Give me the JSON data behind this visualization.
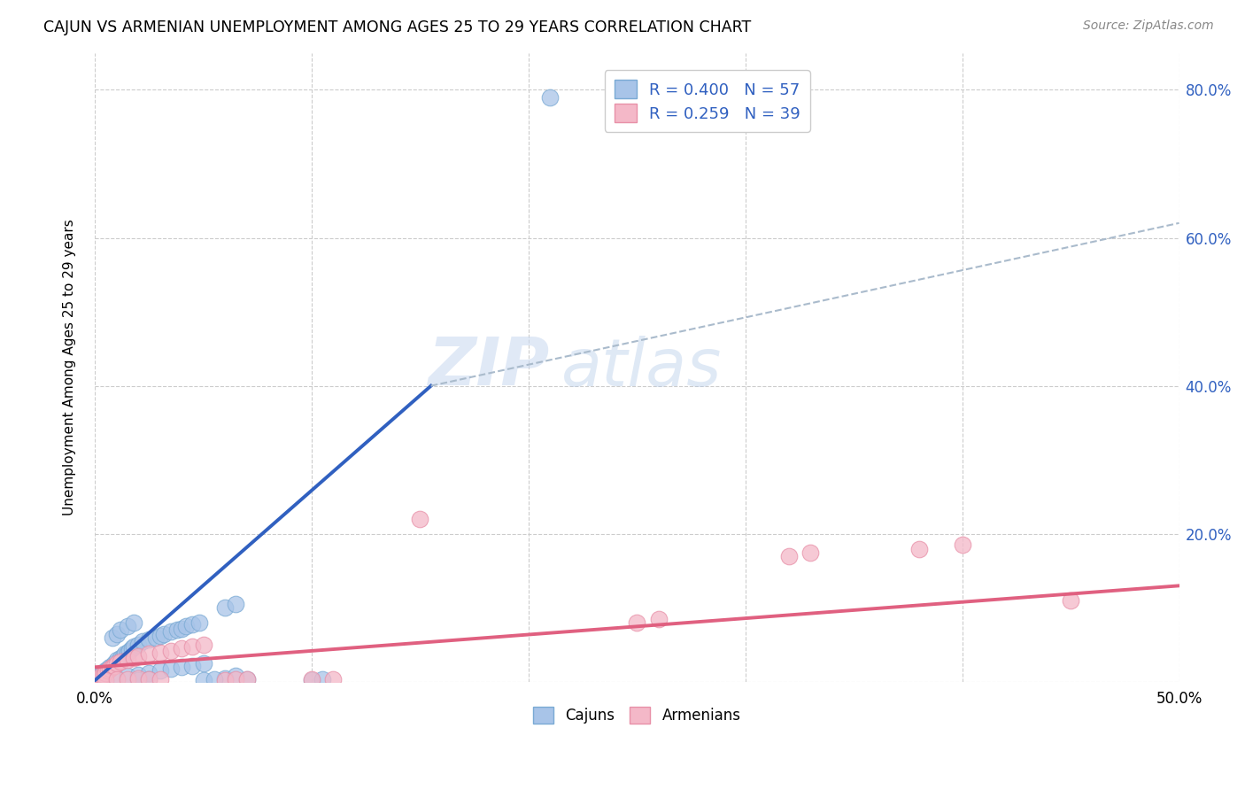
{
  "title": "CAJUN VS ARMENIAN UNEMPLOYMENT AMONG AGES 25 TO 29 YEARS CORRELATION CHART",
  "source": "Source: ZipAtlas.com",
  "ylabel": "Unemployment Among Ages 25 to 29 years",
  "xlim": [
    0.0,
    0.5
  ],
  "ylim": [
    0.0,
    0.85
  ],
  "x_ticks": [
    0.0,
    0.1,
    0.2,
    0.3,
    0.4,
    0.5
  ],
  "x_tick_labels_show": [
    "0.0%",
    "",
    "",
    "",
    "",
    "50.0%"
  ],
  "y_ticks": [
    0.0,
    0.2,
    0.4,
    0.6,
    0.8
  ],
  "y_tick_labels_right": [
    "",
    "20.0%",
    "40.0%",
    "60.0%",
    "80.0%"
  ],
  "cajun_color": "#a8c4e8",
  "cajun_edge_color": "#7aaad4",
  "armenian_color": "#f4b8c8",
  "armenian_edge_color": "#e890a8",
  "cajun_line_color": "#3060c0",
  "armenian_line_color": "#e06080",
  "dashed_line_color": "#aabbcc",
  "watermark": "ZIPatlas",
  "legend_entry_cajun": "R = 0.400   N = 57",
  "legend_entry_armenian": "R = 0.259   N = 39",
  "legend_text_color": "#3060c0",
  "cajun_scatter": [
    [
      0.001,
      0.005
    ],
    [
      0.002,
      0.008
    ],
    [
      0.003,
      0.01
    ],
    [
      0.004,
      0.012
    ],
    [
      0.005,
      0.015
    ],
    [
      0.006,
      0.018
    ],
    [
      0.007,
      0.02
    ],
    [
      0.008,
      0.022
    ],
    [
      0.009,
      0.025
    ],
    [
      0.01,
      0.03
    ],
    [
      0.011,
      0.028
    ],
    [
      0.012,
      0.032
    ],
    [
      0.013,
      0.035
    ],
    [
      0.014,
      0.038
    ],
    [
      0.015,
      0.04
    ],
    [
      0.016,
      0.042
    ],
    [
      0.017,
      0.045
    ],
    [
      0.018,
      0.048
    ],
    [
      0.02,
      0.05
    ],
    [
      0.022,
      0.055
    ],
    [
      0.025,
      0.058
    ],
    [
      0.028,
      0.06
    ],
    [
      0.03,
      0.062
    ],
    [
      0.032,
      0.065
    ],
    [
      0.035,
      0.068
    ],
    [
      0.038,
      0.07
    ],
    [
      0.04,
      0.072
    ],
    [
      0.042,
      0.075
    ],
    [
      0.045,
      0.078
    ],
    [
      0.048,
      0.08
    ],
    [
      0.005,
      0.002
    ],
    [
      0.01,
      0.005
    ],
    [
      0.015,
      0.008
    ],
    [
      0.02,
      0.01
    ],
    [
      0.025,
      0.012
    ],
    [
      0.03,
      0.015
    ],
    [
      0.035,
      0.018
    ],
    [
      0.04,
      0.02
    ],
    [
      0.045,
      0.022
    ],
    [
      0.05,
      0.025
    ],
    [
      0.008,
      0.06
    ],
    [
      0.01,
      0.065
    ],
    [
      0.012,
      0.07
    ],
    [
      0.015,
      0.075
    ],
    [
      0.018,
      0.08
    ],
    [
      0.06,
      0.1
    ],
    [
      0.065,
      0.105
    ],
    [
      0.02,
      0.002
    ],
    [
      0.025,
      0.003
    ],
    [
      0.06,
      0.005
    ],
    [
      0.065,
      0.008
    ],
    [
      0.07,
      0.003
    ],
    [
      0.05,
      0.002
    ],
    [
      0.055,
      0.003
    ],
    [
      0.1,
      0.002
    ],
    [
      0.105,
      0.003
    ],
    [
      0.21,
      0.79
    ]
  ],
  "armenian_scatter": [
    [
      0.001,
      0.002
    ],
    [
      0.002,
      0.005
    ],
    [
      0.003,
      0.008
    ],
    [
      0.004,
      0.01
    ],
    [
      0.005,
      0.012
    ],
    [
      0.006,
      0.015
    ],
    [
      0.007,
      0.018
    ],
    [
      0.008,
      0.02
    ],
    [
      0.009,
      0.022
    ],
    [
      0.01,
      0.025
    ],
    [
      0.012,
      0.028
    ],
    [
      0.015,
      0.03
    ],
    [
      0.018,
      0.032
    ],
    [
      0.02,
      0.035
    ],
    [
      0.025,
      0.038
    ],
    [
      0.03,
      0.04
    ],
    [
      0.035,
      0.042
    ],
    [
      0.04,
      0.045
    ],
    [
      0.045,
      0.048
    ],
    [
      0.05,
      0.05
    ],
    [
      0.005,
      0.002
    ],
    [
      0.01,
      0.003
    ],
    [
      0.015,
      0.004
    ],
    [
      0.02,
      0.005
    ],
    [
      0.025,
      0.003
    ],
    [
      0.03,
      0.004
    ],
    [
      0.06,
      0.002
    ],
    [
      0.065,
      0.003
    ],
    [
      0.07,
      0.004
    ],
    [
      0.1,
      0.003
    ],
    [
      0.11,
      0.004
    ],
    [
      0.15,
      0.22
    ],
    [
      0.25,
      0.08
    ],
    [
      0.26,
      0.085
    ],
    [
      0.32,
      0.17
    ],
    [
      0.33,
      0.175
    ],
    [
      0.38,
      0.18
    ],
    [
      0.4,
      0.185
    ],
    [
      0.45,
      0.11
    ]
  ],
  "cajun_line": [
    [
      0.0,
      0.002
    ],
    [
      0.155,
      0.4
    ]
  ],
  "armenian_line": [
    [
      0.0,
      0.02
    ],
    [
      0.5,
      0.13
    ]
  ],
  "dashed_line": [
    [
      0.155,
      0.4
    ],
    [
      0.5,
      0.62
    ]
  ]
}
